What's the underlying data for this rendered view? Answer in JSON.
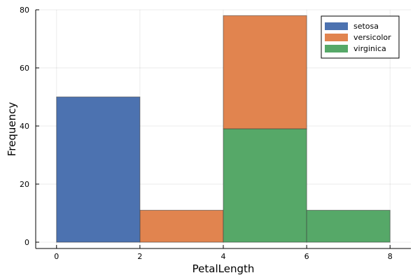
{
  "chart_data": {
    "type": "bar",
    "stacked": true,
    "xlabel": "PetalLength",
    "ylabel": "Frequency",
    "xlim": [
      -0.5,
      8.5
    ],
    "ylim": [
      0,
      80
    ],
    "xticks": [
      0,
      2,
      4,
      6,
      8
    ],
    "yticks": [
      0,
      20,
      40,
      60,
      80
    ],
    "grid": true,
    "legend_position": "top-right",
    "bins": [
      [
        0,
        2
      ],
      [
        2,
        4
      ],
      [
        4,
        6
      ],
      [
        6,
        8
      ]
    ],
    "series": [
      {
        "name": "setosa",
        "color": "#4c72b0",
        "values": [
          50,
          0,
          0,
          0
        ]
      },
      {
        "name": "versicolor",
        "color": "#e1844f",
        "values": [
          0,
          11,
          39,
          0
        ]
      },
      {
        "name": "virginica",
        "color": "#56a868",
        "values": [
          0,
          0,
          39,
          11
        ]
      }
    ],
    "draw_order": [
      "versicolor",
      "virginica",
      "setosa"
    ]
  }
}
